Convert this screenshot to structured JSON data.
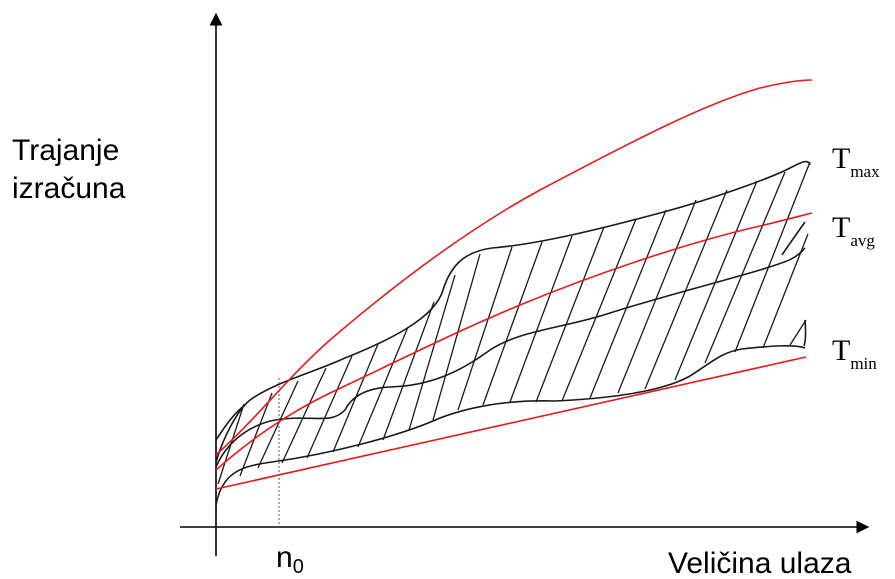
{
  "y_axis_label": [
    "Trajanje",
    "izračuna"
  ],
  "x_axis_label": "Veličina ulaza",
  "n0_label": {
    "base": "n",
    "sub": "0"
  },
  "curve_labels": {
    "max": {
      "base": "T",
      "sub": "max"
    },
    "avg": {
      "base": "T",
      "sub": "avg"
    },
    "min": {
      "base": "T",
      "sub": "min"
    }
  },
  "colors": {
    "axis": "#000000",
    "bound_curves": "#e8191c",
    "band_curves": "#1a1a1a",
    "n0_marker": "#555555"
  }
}
